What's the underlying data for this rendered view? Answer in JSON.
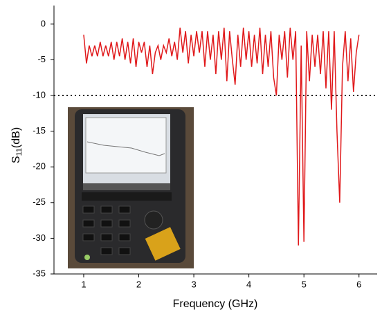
{
  "chart_data": {
    "type": "line",
    "xlabel": "Frequency (GHz)",
    "ylabel": {
      "main": "S",
      "sub": "11",
      "unit": "(dB)"
    },
    "x": [
      1.0,
      1.05,
      1.1,
      1.15,
      1.2,
      1.25,
      1.3,
      1.35,
      1.4,
      1.45,
      1.5,
      1.55,
      1.6,
      1.65,
      1.7,
      1.75,
      1.8,
      1.85,
      1.9,
      1.95,
      2.0,
      2.05,
      2.1,
      2.15,
      2.2,
      2.25,
      2.3,
      2.35,
      2.4,
      2.45,
      2.5,
      2.55,
      2.6,
      2.65,
      2.7,
      2.75,
      2.8,
      2.85,
      2.9,
      2.95,
      3.0,
      3.05,
      3.1,
      3.15,
      3.2,
      3.25,
      3.3,
      3.35,
      3.4,
      3.45,
      3.5,
      3.55,
      3.6,
      3.65,
      3.7,
      3.75,
      3.8,
      3.85,
      3.9,
      3.95,
      4.0,
      4.05,
      4.1,
      4.15,
      4.2,
      4.25,
      4.3,
      4.35,
      4.4,
      4.45,
      4.5,
      4.55,
      4.6,
      4.65,
      4.7,
      4.75,
      4.8,
      4.85,
      4.9,
      4.95,
      5.0,
      5.05,
      5.1,
      5.15,
      5.2,
      5.25,
      5.3,
      5.35,
      5.4,
      5.45,
      5.5,
      5.55,
      5.6,
      5.65,
      5.7,
      5.75,
      5.8,
      5.85,
      5.9,
      5.95,
      6.0
    ],
    "series": [
      {
        "color": "#e0191b",
        "values": [
          -1.5,
          -5.5,
          -3,
          -4.5,
          -3,
          -4.5,
          -2.5,
          -4.5,
          -3,
          -4.5,
          -2.5,
          -5,
          -2.5,
          -4.5,
          -2,
          -5,
          -2.5,
          -5.5,
          -2,
          -6,
          -2.5,
          -4,
          -2.5,
          -6,
          -3,
          -7,
          -4,
          -3,
          -5,
          -3,
          -4,
          -2,
          -4.5,
          -2.5,
          -5,
          -0.5,
          -4,
          -1,
          -5.5,
          -1.5,
          -4.5,
          -1,
          -4,
          -1,
          -6,
          -1,
          -5,
          -1.5,
          -7,
          -1,
          -5,
          -0.5,
          -8,
          -1,
          -5,
          -8.5,
          -1.5,
          -6,
          -0.5,
          -5,
          -1,
          -6,
          -1.5,
          -5.5,
          -0.5,
          -7,
          -1.5,
          -6,
          -1,
          -7.5,
          -10,
          -1.5,
          -5,
          -1,
          -7.5,
          -0.5,
          -5,
          -1,
          -31,
          -3,
          -30.5,
          -1,
          -8,
          -1.5,
          -6,
          -1.5,
          -7,
          -1,
          -9,
          -1,
          -12,
          -1,
          -15,
          -25,
          -6,
          -1,
          -8,
          -2,
          -9.5,
          -4,
          -1.5
        ]
      }
    ],
    "hline": -10,
    "xlim": [
      0.46,
      6.33
    ],
    "ylim": [
      -35,
      2.6
    ],
    "xticks": [
      1,
      2,
      3,
      4,
      5,
      6
    ],
    "yticks": [
      0,
      -5,
      -10,
      -15,
      -20,
      -25,
      -30,
      -35
    ]
  }
}
